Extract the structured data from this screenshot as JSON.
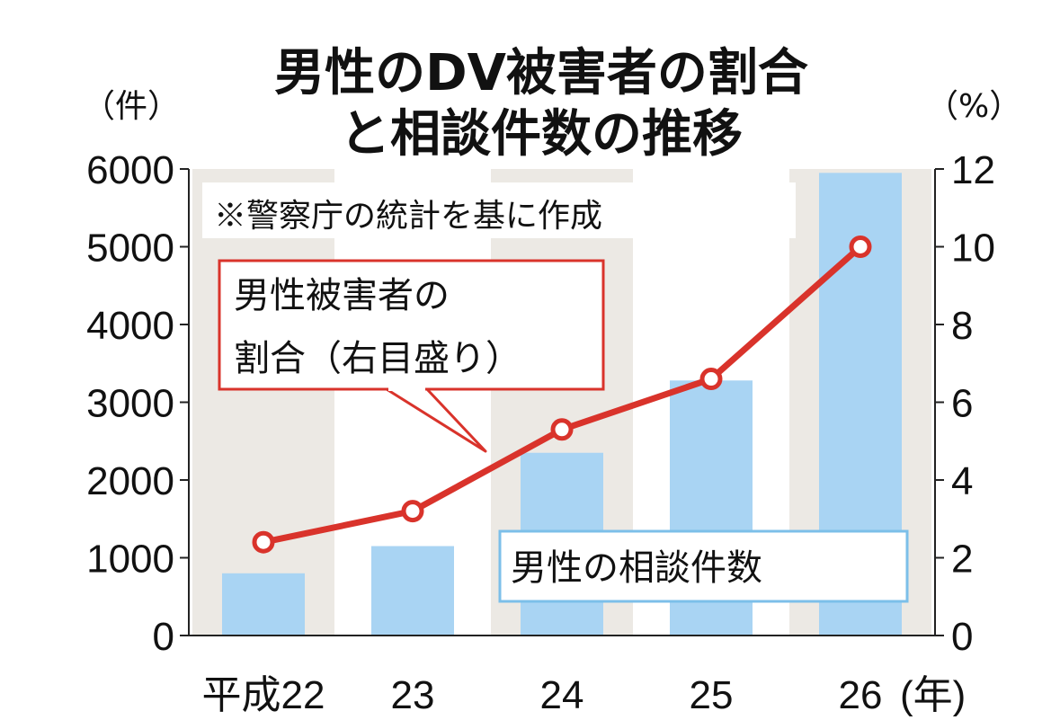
{
  "title_line1": "男性のDV被害者の割合",
  "title_line2": "と相談件数の推移",
  "left_unit": "（件）",
  "right_unit": "（%）",
  "note": "※警察庁の統計を基に作成",
  "line_label_line1": "男性被害者の",
  "line_label_line2": "割合（右目盛り）",
  "bar_label": "男性の相談件数",
  "x_suffix": "(年)",
  "colors": {
    "bar": "#a9d4f3",
    "line": "#d9332b",
    "band": "#ece9e4"
  },
  "chart_data": {
    "type": "bar",
    "categories": [
      "平成22",
      "23",
      "24",
      "25",
      "26"
    ],
    "series": [
      {
        "name": "男性の相談件数",
        "type": "bar",
        "axis": "left",
        "values": [
          800,
          1150,
          2350,
          3280,
          5950
        ]
      },
      {
        "name": "男性被害者の割合（右目盛り）",
        "type": "line",
        "axis": "right",
        "values": [
          2.4,
          3.2,
          5.3,
          6.6,
          10.0
        ]
      }
    ],
    "y_left": {
      "label": "（件）",
      "range": [
        0,
        6000
      ],
      "ticks": [
        0,
        1000,
        2000,
        3000,
        4000,
        5000,
        6000
      ]
    },
    "y_right": {
      "label": "（%）",
      "range": [
        0,
        12
      ],
      "ticks": [
        0,
        2,
        4,
        6,
        8,
        10,
        12
      ]
    },
    "xlabel": "(年)"
  }
}
